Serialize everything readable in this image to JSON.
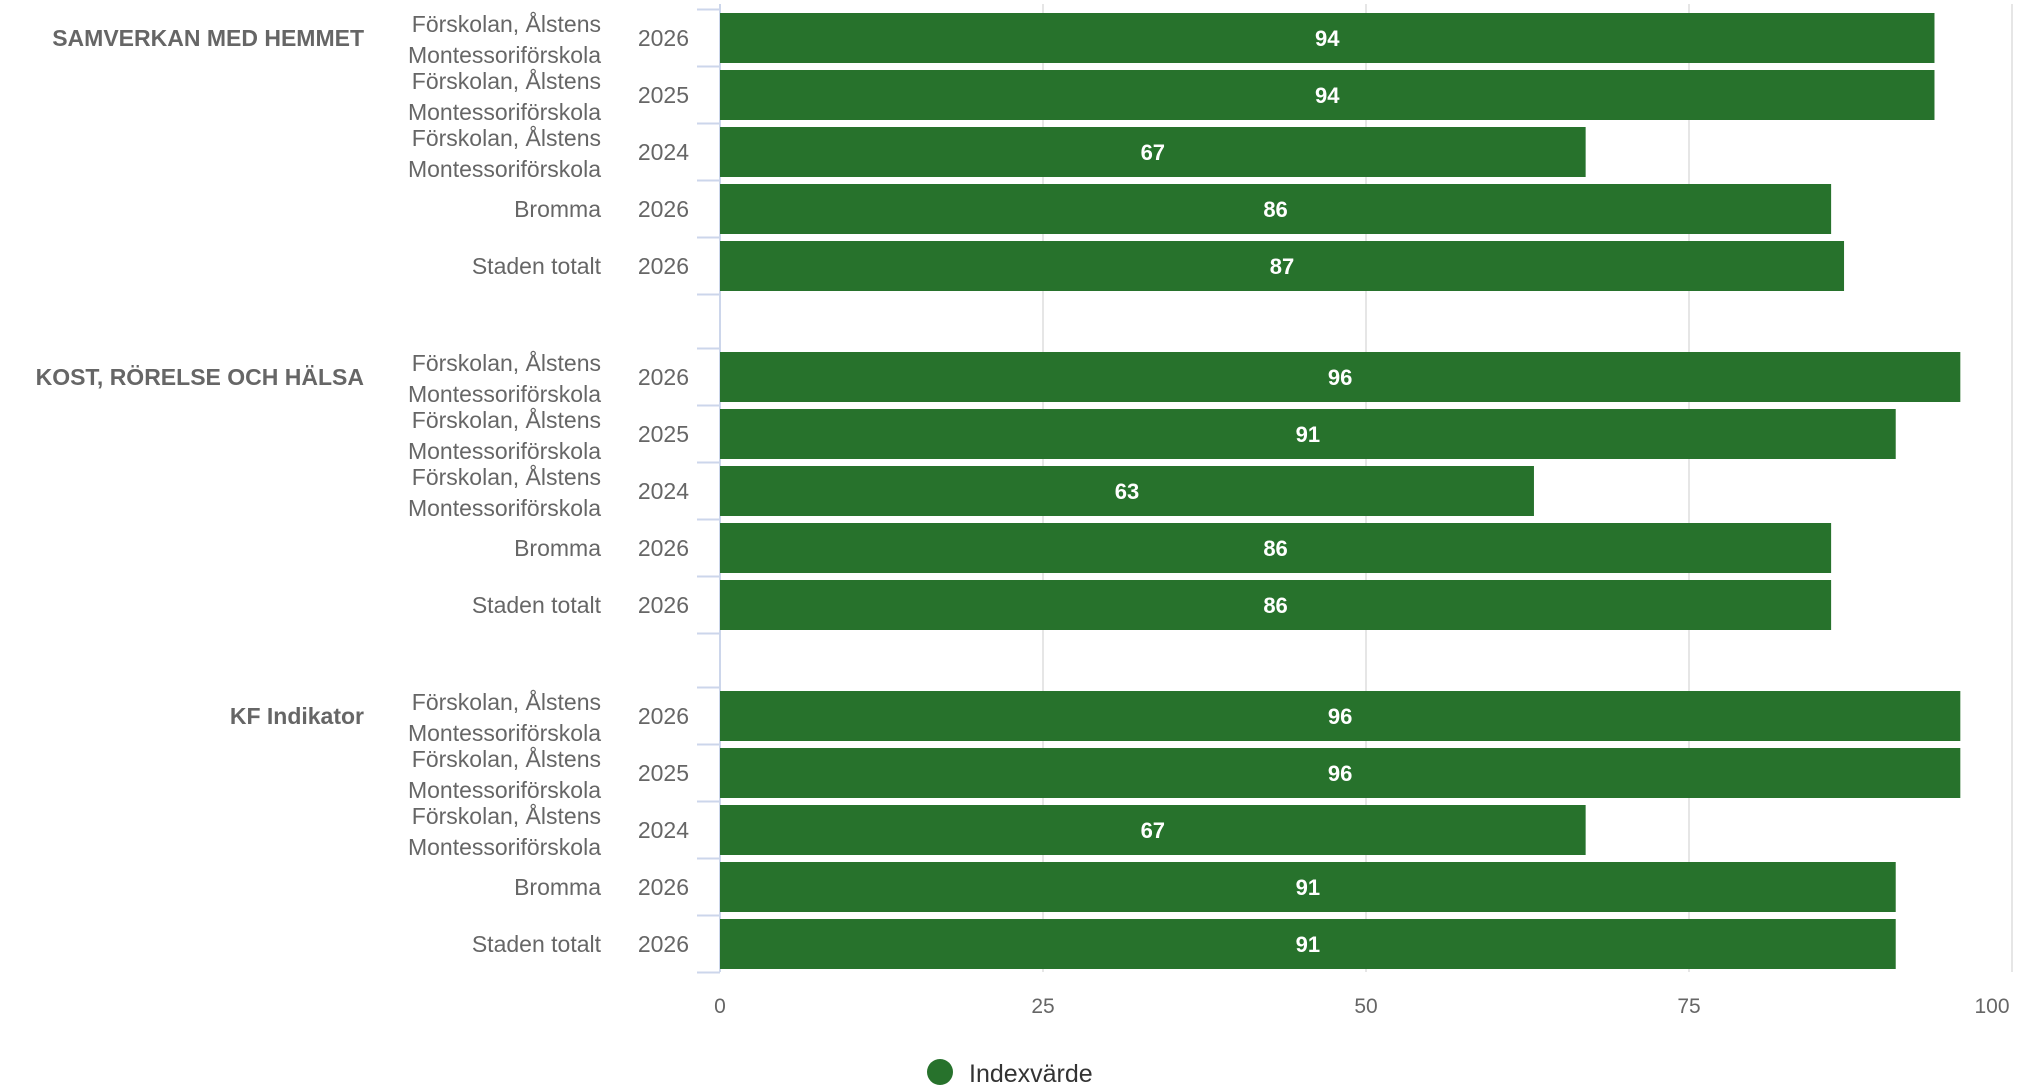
{
  "chart_data": {
    "type": "bar",
    "orientation": "horizontal",
    "xlim": [
      0,
      100
    ],
    "xticks": [
      0,
      25,
      50,
      75,
      100
    ],
    "grid": true,
    "legend_position": "bottom",
    "series": [
      {
        "name": "Indexvärde",
        "color": "#27722c"
      }
    ],
    "groups": [
      {
        "label": "SAMVERKAN MED HEMMET",
        "rows": [
          {
            "unit_line1": "Förskolan, Ålstens",
            "unit_line2": "Montessoriförskola",
            "year": "2026",
            "value": 94
          },
          {
            "unit_line1": "Förskolan, Ålstens",
            "unit_line2": "Montessoriförskola",
            "year": "2025",
            "value": 94
          },
          {
            "unit_line1": "Förskolan, Ålstens",
            "unit_line2": "Montessoriförskola",
            "year": "2024",
            "value": 67
          },
          {
            "unit_line1": "Bromma",
            "unit_line2": "",
            "year": "2026",
            "value": 86
          },
          {
            "unit_line1": "Staden totalt",
            "unit_line2": "",
            "year": "2026",
            "value": 87
          }
        ]
      },
      {
        "label": "KOST, RÖRELSE OCH HÄLSA",
        "rows": [
          {
            "unit_line1": "Förskolan, Ålstens",
            "unit_line2": "Montessoriförskola",
            "year": "2026",
            "value": 96
          },
          {
            "unit_line1": "Förskolan, Ålstens",
            "unit_line2": "Montessoriförskola",
            "year": "2025",
            "value": 91
          },
          {
            "unit_line1": "Förskolan, Ålstens",
            "unit_line2": "Montessoriförskola",
            "year": "2024",
            "value": 63
          },
          {
            "unit_line1": "Bromma",
            "unit_line2": "",
            "year": "2026",
            "value": 86
          },
          {
            "unit_line1": "Staden totalt",
            "unit_line2": "",
            "year": "2026",
            "value": 86
          }
        ]
      },
      {
        "label": "KF Indikator",
        "rows": [
          {
            "unit_line1": "Förskolan, Ålstens",
            "unit_line2": "Montessoriförskola",
            "year": "2026",
            "value": 96
          },
          {
            "unit_line1": "Förskolan, Ålstens",
            "unit_line2": "Montessoriförskola",
            "year": "2025",
            "value": 96
          },
          {
            "unit_line1": "Förskolan, Ålstens",
            "unit_line2": "Montessoriförskola",
            "year": "2024",
            "value": 67
          },
          {
            "unit_line1": "Bromma",
            "unit_line2": "",
            "year": "2026",
            "value": 91
          },
          {
            "unit_line1": "Staden totalt",
            "unit_line2": "",
            "year": "2026",
            "value": 91
          }
        ]
      }
    ]
  },
  "legend": {
    "label": "Indexvärde",
    "color": "#27722c"
  }
}
